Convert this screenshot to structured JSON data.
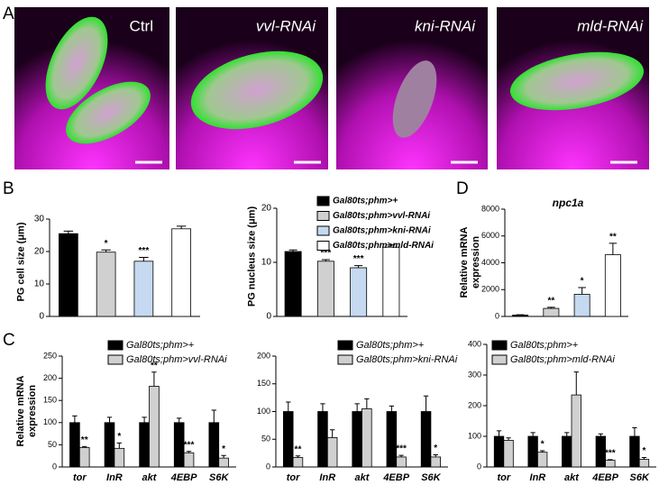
{
  "panel_labels": [
    "A",
    "B",
    "C",
    "D"
  ],
  "images": [
    {
      "label": "Ctrl"
    },
    {
      "label": "vvl-RNAi"
    },
    {
      "label": "kni-RNAi"
    },
    {
      "label": "mld-RNAi"
    }
  ],
  "chart_data": [
    {
      "type": "bar",
      "ylabel": "PG cell size (μm)",
      "values": [
        25.5,
        19.8,
        17,
        27
      ],
      "errors": [
        0.8,
        0.7,
        1.2,
        0.8
      ],
      "annotations": [
        null,
        "*",
        "***",
        null
      ],
      "colors": [
        "#000000",
        "#d0d0d0",
        "#c5d9f1",
        "#ffffff"
      ],
      "ylim": [
        0,
        30
      ],
      "yticks": [
        0,
        10,
        20,
        30
      ]
    },
    {
      "type": "bar",
      "ylabel": "PG nucleus size (μm)",
      "values": [
        12,
        10.2,
        9,
        12.8
      ],
      "errors": [
        0.3,
        0.3,
        0.4,
        0.4
      ],
      "annotations": [
        null,
        "***",
        "***",
        null
      ],
      "colors": [
        "#000000",
        "#d0d0d0",
        "#c5d9f1",
        "#ffffff"
      ],
      "legend": [
        "Gal80ts;phm>+",
        "Gal80ts;phm>vvl-RNAi",
        "Gal80ts;phm>kni-RNAi",
        "Gal80ts;phm>mld-RNAi"
      ],
      "ylim": [
        0,
        20
      ],
      "yticks": [
        0,
        10,
        20
      ]
    },
    {
      "type": "bar",
      "title": "npc1a",
      "ylabel": "Relative mRNA expression",
      "values": [
        100,
        600,
        1650,
        4600
      ],
      "errors": [
        30,
        80,
        500,
        850
      ],
      "annotations": [
        null,
        "**",
        "*",
        "**"
      ],
      "colors": [
        "#000000",
        "#d0d0d0",
        "#c5d9f1",
        "#ffffff"
      ],
      "ylim": [
        0,
        8000
      ],
      "yticks": [
        0,
        2000,
        4000,
        6000,
        8000
      ]
    },
    {
      "type": "grouped-bar",
      "ylabel": "Relative mRNA expression",
      "categories": [
        "tor",
        "InR",
        "akt",
        "4EBP",
        "S6K"
      ],
      "series": [
        {
          "name": "Gal80ts;phm>+",
          "color": "#000000",
          "values": [
            100,
            100,
            100,
            100,
            100
          ],
          "errors": [
            15,
            12,
            12,
            10,
            28
          ],
          "annotations": [
            null,
            null,
            null,
            null,
            null
          ]
        },
        {
          "name": "Gal80ts;phm>vvl-RNAi",
          "color": "#d0d0d0",
          "values": [
            44,
            42,
            182,
            32,
            20
          ],
          "errors": [
            2,
            12,
            32,
            3,
            6
          ],
          "annotations": [
            "**",
            "*",
            "**",
            "***",
            "*"
          ]
        }
      ],
      "ylim": [
        0,
        250
      ],
      "yticks": [
        0,
        50,
        100,
        150,
        200,
        250
      ]
    },
    {
      "type": "grouped-bar",
      "categories": [
        "tor",
        "InR",
        "akt",
        "4EBP",
        "S6K"
      ],
      "series": [
        {
          "name": "Gal80ts;phm>+",
          "color": "#000000",
          "values": [
            100,
            100,
            100,
            100,
            100
          ],
          "errors": [
            17,
            14,
            14,
            10,
            28
          ],
          "annotations": [
            null,
            null,
            null,
            null,
            null
          ]
        },
        {
          "name": "Gal80ts;phm>kni-RNAi",
          "color": "#d0d0d0",
          "values": [
            17,
            53,
            105,
            18,
            18
          ],
          "errors": [
            3,
            14,
            18,
            3,
            4
          ],
          "annotations": [
            "**",
            null,
            null,
            "***",
            "*"
          ]
        }
      ],
      "ylim": [
        0,
        200
      ],
      "yticks": [
        0,
        50,
        100,
        150,
        200
      ]
    },
    {
      "type": "grouped-bar",
      "categories": [
        "tor",
        "InR",
        "akt",
        "4EBP",
        "S6K"
      ],
      "series": [
        {
          "name": "Gal80ts;phm>+",
          "color": "#000000",
          "values": [
            100,
            100,
            100,
            100,
            100
          ],
          "errors": [
            18,
            12,
            12,
            8,
            28
          ],
          "annotations": [
            null,
            null,
            null,
            null,
            null
          ]
        },
        {
          "name": "Gal80ts;phm>mld-RNAi",
          "color": "#d0d0d0",
          "values": [
            87,
            48,
            235,
            22,
            25
          ],
          "errors": [
            8,
            5,
            75,
            2,
            6
          ],
          "annotations": [
            null,
            "*",
            null,
            "***",
            "*"
          ]
        }
      ],
      "ylim": [
        0,
        400
      ],
      "yticks": [
        0,
        100,
        200,
        300,
        400
      ]
    }
  ]
}
